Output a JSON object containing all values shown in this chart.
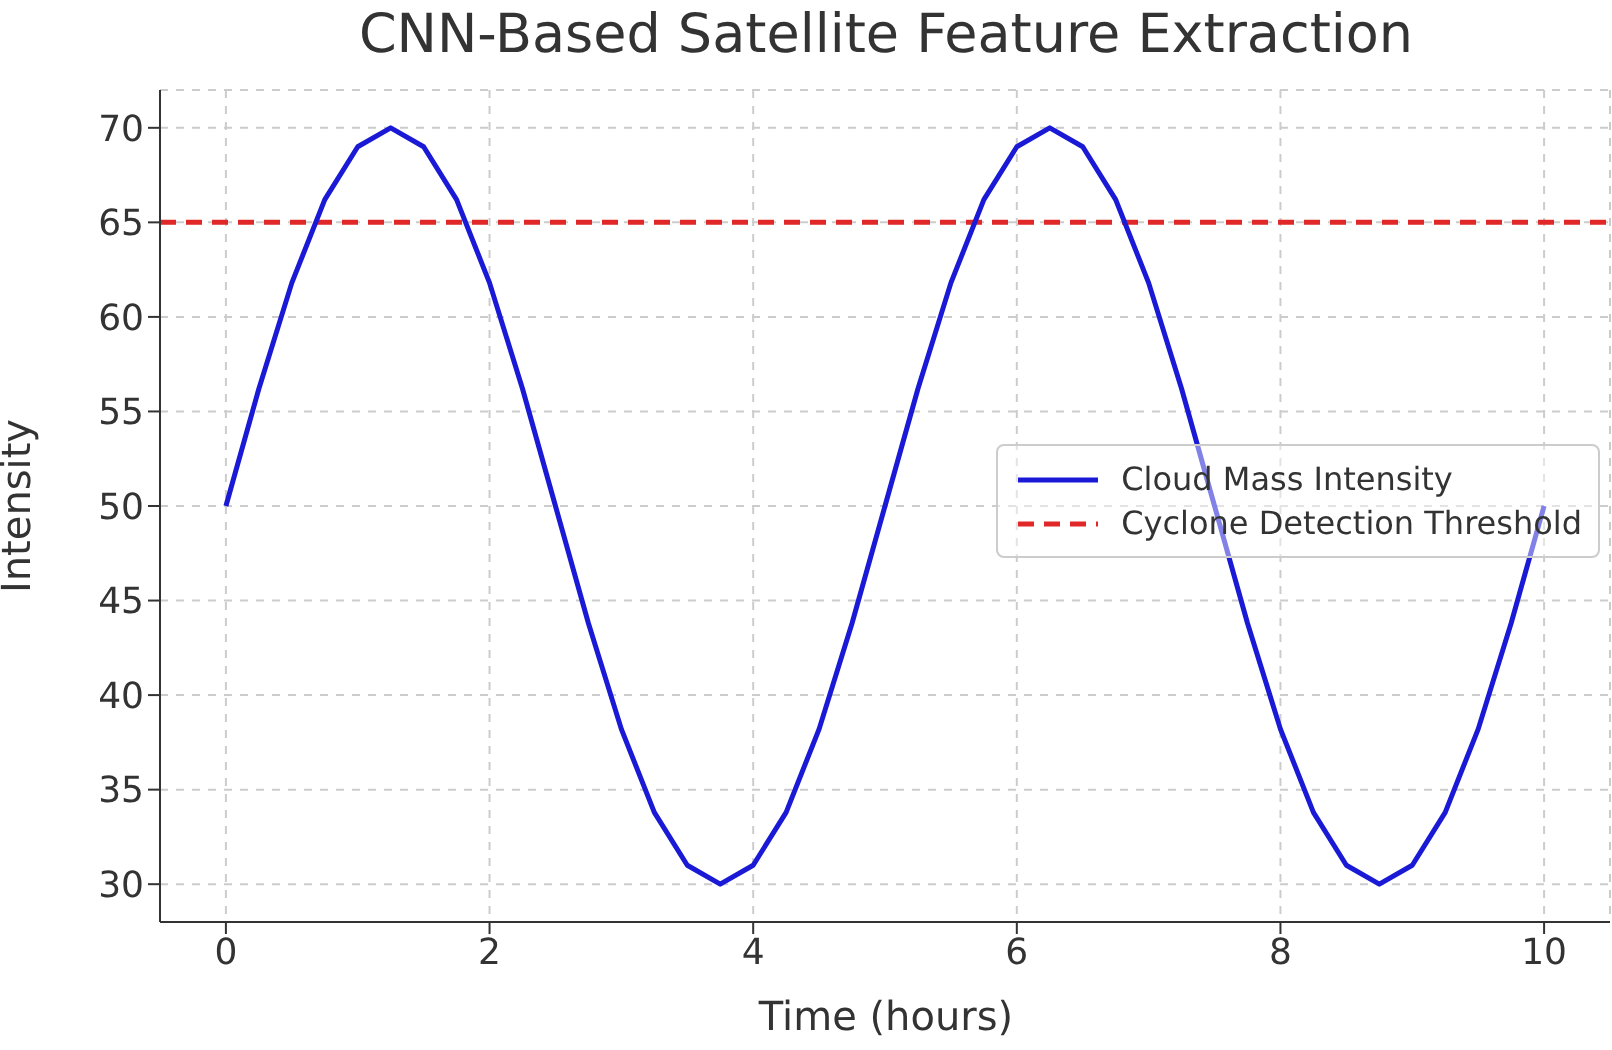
{
  "chart_data": {
    "type": "line",
    "title": "CNN-Based Satellite Feature Extraction",
    "xlabel": "Time (hours)",
    "ylabel": "Intensity",
    "x": [
      0,
      0.25,
      0.5,
      0.75,
      1,
      1.25,
      1.5,
      1.75,
      2,
      2.25,
      2.5,
      2.75,
      3,
      3.25,
      3.5,
      3.75,
      4,
      4.25,
      4.5,
      4.75,
      5,
      5.25,
      5.5,
      5.75,
      6,
      6.25,
      6.5,
      6.75,
      7,
      7.25,
      7.5,
      7.75,
      8,
      8.25,
      8.5,
      8.75,
      9,
      9.25,
      9.5,
      9.75,
      10
    ],
    "series": [
      {
        "name": "Cloud Mass Intensity",
        "color": "#1a1ad6",
        "values": [
          50,
          56.2,
          61.8,
          66.2,
          69,
          70,
          69,
          66.2,
          61.8,
          56.2,
          50,
          43.8,
          38.2,
          33.8,
          31,
          30,
          31,
          33.8,
          38.2,
          43.8,
          50,
          56.2,
          61.8,
          66.2,
          69,
          70,
          69,
          66.2,
          61.8,
          56.2,
          50,
          43.8,
          38.2,
          33.8,
          31,
          30,
          31,
          33.8,
          38.2,
          43.8,
          50
        ]
      }
    ],
    "ref_lines": [
      {
        "axis": "y",
        "value": 65,
        "label": "Cyclone Detection Threshold",
        "color": "#e02828",
        "line_style": "dashed"
      }
    ],
    "xlim": [
      -0.5,
      10.5
    ],
    "xticks": [
      0,
      2,
      4,
      6,
      8,
      10
    ],
    "ylim": [
      28,
      72
    ],
    "yticks": [
      30,
      35,
      40,
      45,
      50,
      55,
      60,
      65,
      70
    ],
    "grid": true,
    "legend": "center right",
    "line_style": "solid",
    "marker": "none"
  }
}
